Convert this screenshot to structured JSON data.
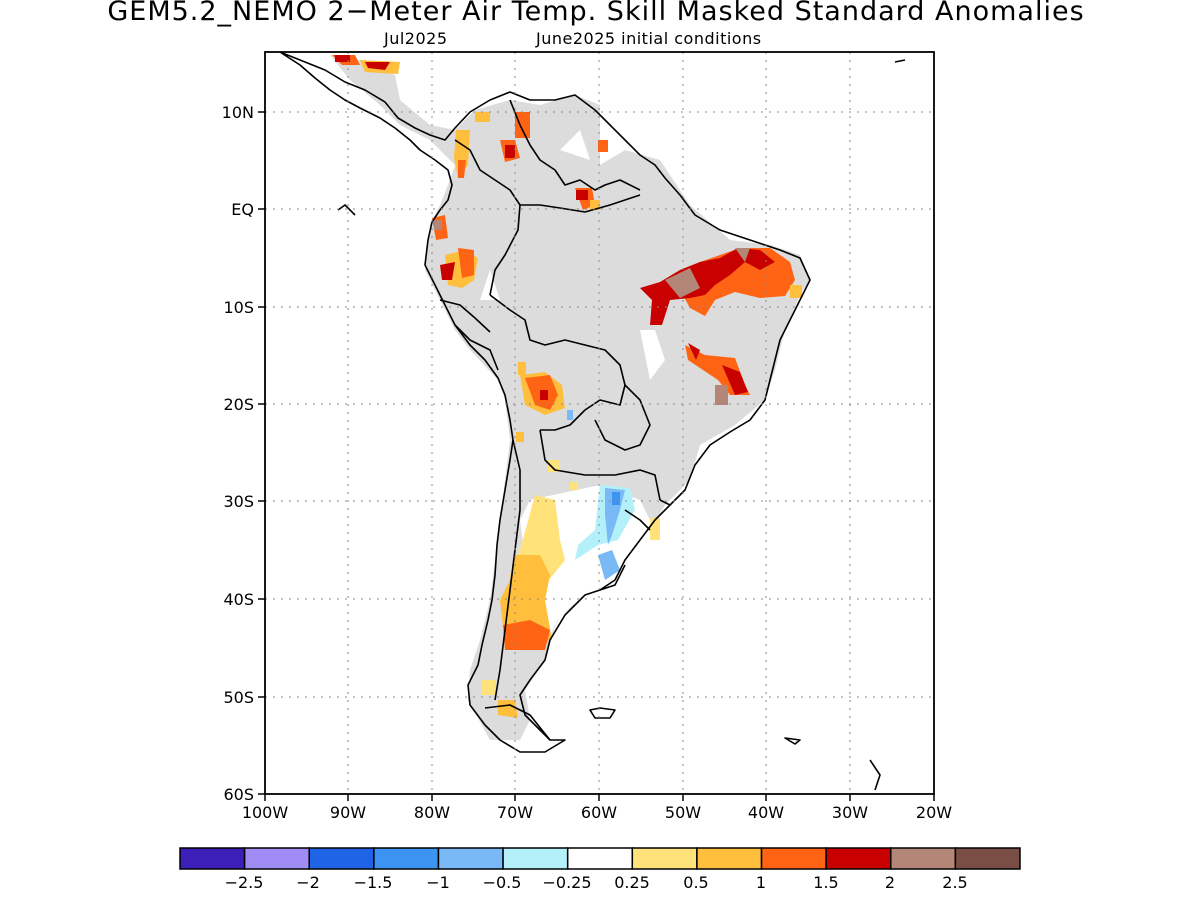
{
  "title": "GEM5.2_NEMO 2−Meter Air Temp. Skill Masked Standard Anomalies",
  "subtitle_left": "Jul2025",
  "subtitle_right": "June2025 initial conditions",
  "map": {
    "region": "South America",
    "lon_range": [
      -100,
      -20
    ],
    "lat_range": [
      -60,
      15
    ],
    "lat_ticks": [
      "10N",
      "EQ",
      "10S",
      "20S",
      "30S",
      "40S",
      "50S",
      "60S"
    ],
    "lon_ticks": [
      "100W",
      "90W",
      "80W",
      "70W",
      "60W",
      "50W",
      "40W",
      "30W",
      "20W"
    ],
    "grid": "dotted",
    "land_mask_color": "#dcdcdc"
  },
  "colorbar": {
    "labels": [
      "−2.5",
      "−2",
      "−1.5",
      "−1",
      "−0.5",
      "−0.25",
      "0.25",
      "0.5",
      "1",
      "1.5",
      "2",
      "2.5"
    ],
    "colors": [
      "#3b1fb8",
      "#a08cf5",
      "#1f64e6",
      "#3c94f0",
      "#78b9f6",
      "#b4f0fa",
      "#ffffff",
      "#ffe27a",
      "#ffbe3c",
      "#ff6414",
      "#c80000",
      "#b48678",
      "#7a4e44"
    ]
  },
  "chart_data": {
    "type": "heatmap",
    "title": "GEM5.2_NEMO 2−Meter Air Temp. Skill Masked Standard Anomalies",
    "subtitle": "Jul2025  June2025 initial conditions",
    "variable": "2-meter air temperature standard anomaly (skill masked)",
    "x_axis": {
      "ticks": [
        "100W",
        "90W",
        "80W",
        "70W",
        "60W",
        "50W",
        "40W",
        "30W",
        "20W"
      ],
      "range": [
        -100,
        -20
      ]
    },
    "y_axis": {
      "ticks": [
        "10N",
        "EQ",
        "10S",
        "20S",
        "30S",
        "40S",
        "50S",
        "60S"
      ],
      "range": [
        -60,
        15
      ]
    },
    "legend_bins": [
      -2.5,
      -2,
      -1.5,
      -1,
      -0.5,
      -0.25,
      0.25,
      0.5,
      1,
      1.5,
      2,
      2.5
    ],
    "regions": [
      {
        "lon": [
          -53,
          -39
        ],
        "lat": [
          -10,
          -4
        ],
        "value": 2,
        "note": "NE Brazil"
      },
      {
        "lon": [
          -46,
          -42
        ],
        "lat": [
          -19,
          -14
        ],
        "value": 1.5
      },
      {
        "lon": [
          -67,
          -64
        ],
        "lat": [
          -20,
          -17
        ],
        "value": 1.5
      },
      {
        "lon": [
          -77,
          -74
        ],
        "lat": [
          -8,
          -4
        ],
        "value": 1.5
      },
      {
        "lon": [
          -71,
          -66
        ],
        "lat": [
          -45,
          -39
        ],
        "value": 1
      },
      {
        "lon": [
          -70,
          -62
        ],
        "lat": [
          -38,
          -30
        ],
        "value": 0.5
      },
      {
        "lon": [
          -60,
          -55
        ],
        "lat": [
          -37,
          -29
        ],
        "value": -0.5
      },
      {
        "lon": [
          -90,
          -82
        ],
        "lat": [
          15,
          14
        ],
        "value": 1.5
      },
      {
        "lon": [
          -72,
          -68
        ],
        "lat": [
          11,
          7
        ],
        "value": 1.5
      }
    ],
    "grid": true
  }
}
